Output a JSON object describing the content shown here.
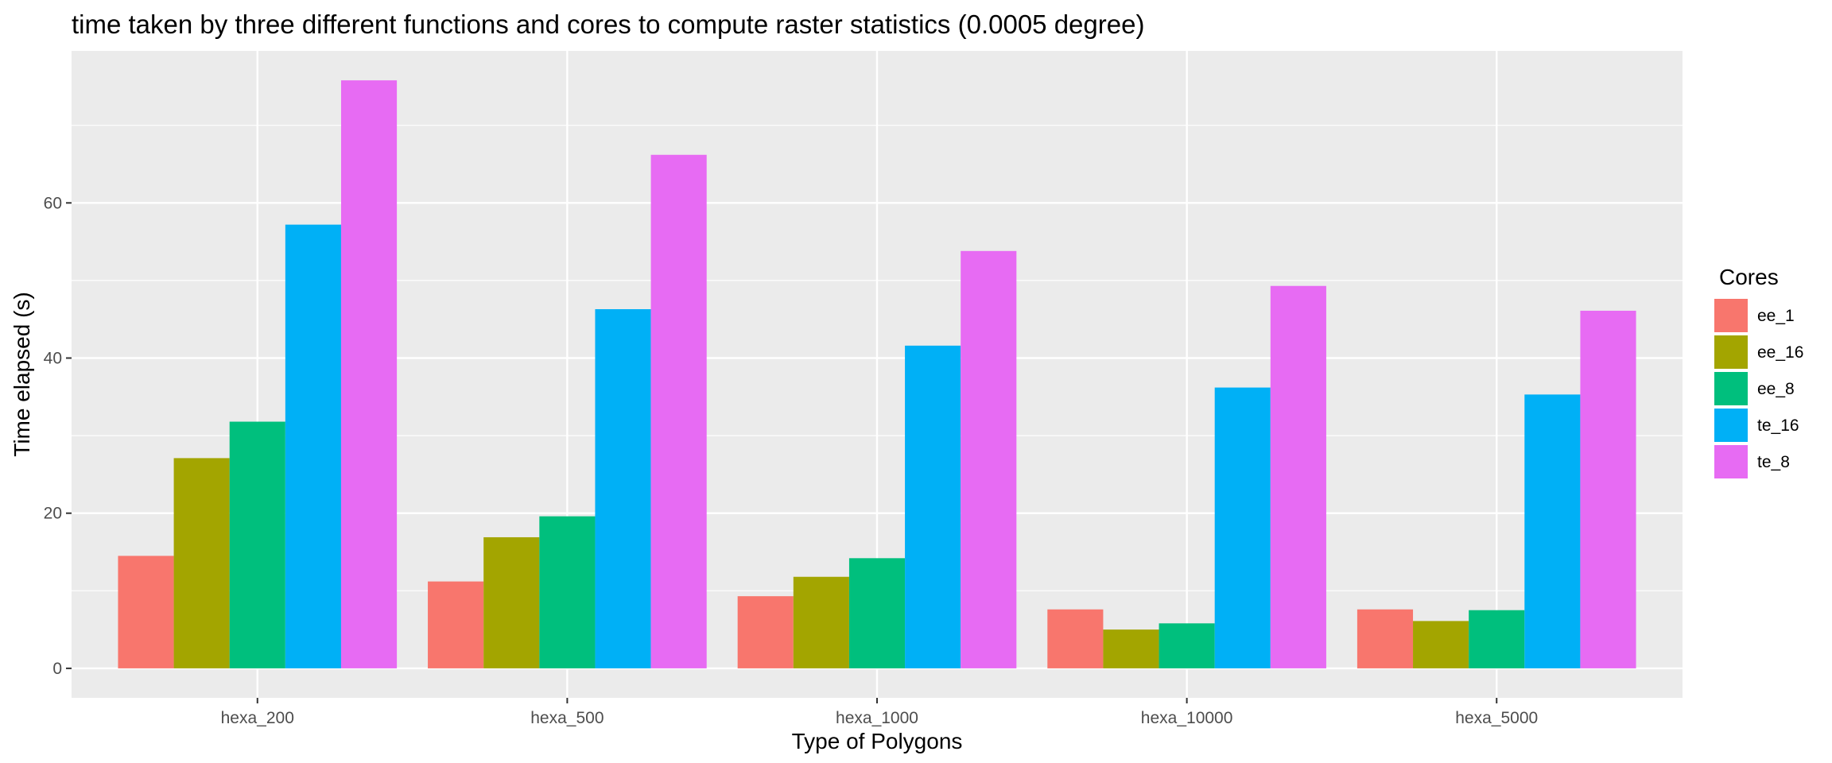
{
  "chart_data": {
    "type": "bar",
    "title": "time taken by three different functions and cores to compute raster statistics (0.0005 degree)",
    "xlabel": "Type of Polygons",
    "ylabel": "Time elapsed (s)",
    "categories": [
      "hexa_200",
      "hexa_500",
      "hexa_1000",
      "hexa_10000",
      "hexa_5000"
    ],
    "yticks": [
      0,
      20,
      40,
      60
    ],
    "ylim": [
      -3.8,
      79.6
    ],
    "grid": true,
    "legend": {
      "title": "Cores",
      "placement": "right"
    },
    "series": [
      {
        "name": "ee_1",
        "color": "#F8766D",
        "values": [
          14.5,
          11.2,
          9.3,
          7.6,
          7.6
        ]
      },
      {
        "name": "ee_16",
        "color": "#A3A500",
        "values": [
          27.1,
          16.9,
          11.8,
          5.0,
          6.1
        ]
      },
      {
        "name": "ee_8",
        "color": "#00BF7D",
        "values": [
          31.8,
          19.6,
          14.2,
          5.8,
          7.5
        ]
      },
      {
        "name": "te_16",
        "color": "#00B0F6",
        "values": [
          57.2,
          46.3,
          41.6,
          36.2,
          35.3
        ]
      },
      {
        "name": "te_8",
        "color": "#E76BF3",
        "values": [
          75.8,
          66.2,
          53.8,
          49.3,
          46.1
        ]
      }
    ]
  }
}
